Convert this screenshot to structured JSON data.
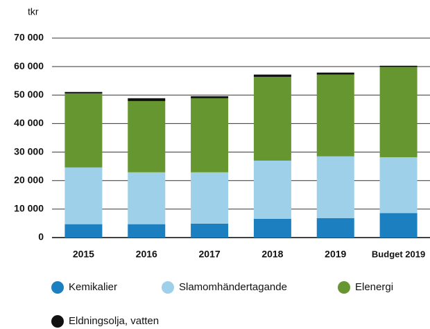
{
  "chart_data": {
    "type": "stacked_bar",
    "y_label": "tkr",
    "categories": [
      "2015",
      "2016",
      "2017",
      "2018",
      "2019",
      "Budget 2019"
    ],
    "series": [
      {
        "name": "Kemikalier",
        "color": "#1b7fc0",
        "values": [
          4700,
          4700,
          4900,
          6600,
          6800,
          8600
        ]
      },
      {
        "name": "Slamomhändertagande",
        "color": "#9fd0ea",
        "values": [
          19900,
          18200,
          18000,
          20400,
          21700,
          19600
        ]
      },
      {
        "name": "Elenergi",
        "color": "#65962f",
        "values": [
          26000,
          25000,
          26000,
          29400,
          28700,
          31700
        ]
      },
      {
        "name": "Eldningsolja, vatten",
        "color": "#111111",
        "values": [
          500,
          1000,
          700,
          800,
          700,
          400
        ]
      }
    ],
    "ylim": [
      0,
      70000
    ],
    "yticks": [
      0,
      {
        "value": 10000,
        "label": "10 000"
      },
      {
        "value": 20000,
        "label": "20 000"
      },
      {
        "value": 30000,
        "label": "30 000"
      },
      {
        "value": 40000,
        "label": "40 000"
      },
      {
        "value": 50000,
        "label": "50 000"
      },
      {
        "value": 60000,
        "label": "60 000"
      },
      {
        "value": 70000,
        "label": "70 000"
      }
    ],
    "grid": true
  }
}
